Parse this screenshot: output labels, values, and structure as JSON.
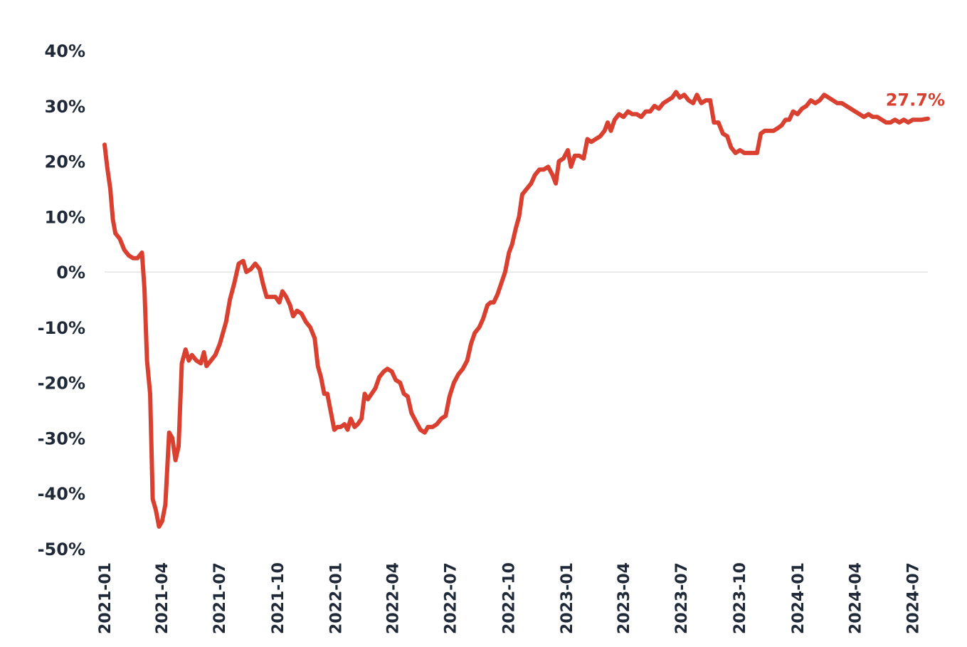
{
  "chart_data": {
    "type": "line",
    "title": "",
    "xlabel": "",
    "ylabel": "",
    "ylim": [
      -50,
      40
    ],
    "y_ticks": [
      40,
      30,
      20,
      10,
      0,
      -10,
      -20,
      -30,
      -40,
      -50
    ],
    "y_tick_labels": [
      "40%",
      "30%",
      "20%",
      "10%",
      "0%",
      "-10%",
      "-20%",
      "-30%",
      "-40%",
      "-50%"
    ],
    "x_tick_labels": [
      "2021-01",
      "2021-04",
      "2021-07",
      "2021-10",
      "2022-01",
      "2022-04",
      "2022-07",
      "2022-10",
      "2023-01",
      "2023-04",
      "2023-07",
      "2023-10",
      "2024-01",
      "2024-04",
      "2024-07"
    ],
    "x_range": [
      "2021-01-01",
      "2024-07-25"
    ],
    "grid": "zero line only",
    "legend": "none",
    "line_color": "#d94030",
    "zero_line_color": "#e3e3e3",
    "text_color": "#1f2937",
    "last_value_label": "27.7%",
    "series": [
      {
        "points": [
          [
            "2021-01-01",
            23
          ],
          [
            "2021-01-05",
            19
          ],
          [
            "2021-01-10",
            15
          ],
          [
            "2021-01-14",
            9.5
          ],
          [
            "2021-01-18",
            7
          ],
          [
            "2021-01-25",
            6
          ],
          [
            "2021-02-01",
            4
          ],
          [
            "2021-02-08",
            3
          ],
          [
            "2021-02-15",
            2.5
          ],
          [
            "2021-02-22",
            2.5
          ],
          [
            "2021-03-01",
            3.5
          ],
          [
            "2021-03-05",
            -3
          ],
          [
            "2021-03-09",
            -16
          ],
          [
            "2021-03-14",
            -22
          ],
          [
            "2021-03-18",
            -41
          ],
          [
            "2021-03-23",
            -43
          ],
          [
            "2021-03-28",
            -46
          ],
          [
            "2021-04-02",
            -45
          ],
          [
            "2021-04-07",
            -42
          ],
          [
            "2021-04-13",
            -29
          ],
          [
            "2021-04-18",
            -30
          ],
          [
            "2021-04-23",
            -34
          ],
          [
            "2021-04-28",
            -31.5
          ],
          [
            "2021-05-03",
            -16.5
          ],
          [
            "2021-05-09",
            -14
          ],
          [
            "2021-05-14",
            -16
          ],
          [
            "2021-05-19",
            -15
          ],
          [
            "2021-05-26",
            -16
          ],
          [
            "2021-06-02",
            -16.5
          ],
          [
            "2021-06-07",
            -14.5
          ],
          [
            "2021-06-11",
            -17
          ],
          [
            "2021-06-18",
            -16
          ],
          [
            "2021-06-25",
            -15
          ],
          [
            "2021-07-02",
            -13
          ],
          [
            "2021-07-07",
            -11
          ],
          [
            "2021-07-12",
            -9
          ],
          [
            "2021-07-18",
            -5
          ],
          [
            "2021-07-25",
            -2
          ],
          [
            "2021-08-01",
            1.5
          ],
          [
            "2021-08-08",
            2
          ],
          [
            "2021-08-13",
            0
          ],
          [
            "2021-08-20",
            0.5
          ],
          [
            "2021-08-27",
            1.5
          ],
          [
            "2021-09-03",
            0.5
          ],
          [
            "2021-09-08",
            -2
          ],
          [
            "2021-09-14",
            -4.5
          ],
          [
            "2021-09-21",
            -4.5
          ],
          [
            "2021-09-28",
            -4.5
          ],
          [
            "2021-10-04",
            -5.5
          ],
          [
            "2021-10-09",
            -3.5
          ],
          [
            "2021-10-15",
            -4.5
          ],
          [
            "2021-10-21",
            -6
          ],
          [
            "2021-10-26",
            -8
          ],
          [
            "2021-11-01",
            -7
          ],
          [
            "2021-11-08",
            -7.5
          ],
          [
            "2021-11-15",
            -9
          ],
          [
            "2021-11-22",
            -10
          ],
          [
            "2021-11-29",
            -12
          ],
          [
            "2021-12-04",
            -17
          ],
          [
            "2021-12-09",
            -19
          ],
          [
            "2021-12-14",
            -22
          ],
          [
            "2021-12-19",
            -22
          ],
          [
            "2021-12-24",
            -25
          ],
          [
            "2021-12-30",
            -28.5
          ],
          [
            "2022-01-04",
            -28
          ],
          [
            "2022-01-09",
            -28
          ],
          [
            "2022-01-15",
            -27.5
          ],
          [
            "2022-01-20",
            -28.5
          ],
          [
            "2022-01-25",
            -26.5
          ],
          [
            "2022-01-31",
            -28
          ],
          [
            "2022-02-05",
            -27.5
          ],
          [
            "2022-02-11",
            -26.5
          ],
          [
            "2022-02-16",
            -22
          ],
          [
            "2022-02-21",
            -23
          ],
          [
            "2022-02-27",
            -22
          ],
          [
            "2022-03-05",
            -21
          ],
          [
            "2022-03-11",
            -19
          ],
          [
            "2022-03-18",
            -18
          ],
          [
            "2022-03-24",
            -17.5
          ],
          [
            "2022-03-31",
            -18
          ],
          [
            "2022-04-06",
            -19.5
          ],
          [
            "2022-04-13",
            -20
          ],
          [
            "2022-04-19",
            -22
          ],
          [
            "2022-04-25",
            -22.5
          ],
          [
            "2022-05-01",
            -25.5
          ],
          [
            "2022-05-08",
            -27
          ],
          [
            "2022-05-15",
            -28.5
          ],
          [
            "2022-05-22",
            -29
          ],
          [
            "2022-05-27",
            -28
          ],
          [
            "2022-06-03",
            -28
          ],
          [
            "2022-06-10",
            -27.5
          ],
          [
            "2022-06-17",
            -26.5
          ],
          [
            "2022-06-24",
            -26
          ],
          [
            "2022-06-30",
            -22.5
          ],
          [
            "2022-07-07",
            -20
          ],
          [
            "2022-07-14",
            -18.5
          ],
          [
            "2022-07-21",
            -17.5
          ],
          [
            "2022-07-28",
            -16
          ],
          [
            "2022-08-03",
            -13
          ],
          [
            "2022-08-09",
            -11
          ],
          [
            "2022-08-16",
            -10
          ],
          [
            "2022-08-22",
            -8.5
          ],
          [
            "2022-08-29",
            -6
          ],
          [
            "2022-09-03",
            -5.5
          ],
          [
            "2022-09-08",
            -5.5
          ],
          [
            "2022-09-14",
            -4
          ],
          [
            "2022-09-20",
            -2
          ],
          [
            "2022-09-26",
            0
          ],
          [
            "2022-10-02",
            3.5
          ],
          [
            "2022-10-07",
            5
          ],
          [
            "2022-10-13",
            8
          ],
          [
            "2022-10-18",
            10
          ],
          [
            "2022-10-23",
            14
          ],
          [
            "2022-10-30",
            15
          ],
          [
            "2022-11-06",
            16
          ],
          [
            "2022-11-12",
            17.5
          ],
          [
            "2022-11-19",
            18.5
          ],
          [
            "2022-11-26",
            18.5
          ],
          [
            "2022-12-03",
            19
          ],
          [
            "2022-12-10",
            17.5
          ],
          [
            "2022-12-15",
            16
          ],
          [
            "2022-12-20",
            20
          ],
          [
            "2022-12-27",
            20.5
          ],
          [
            "2023-01-03",
            22
          ],
          [
            "2023-01-08",
            19
          ],
          [
            "2023-01-14",
            21
          ],
          [
            "2023-01-21",
            21
          ],
          [
            "2023-01-28",
            20.5
          ],
          [
            "2023-02-03",
            24
          ],
          [
            "2023-02-09",
            23.5
          ],
          [
            "2023-02-16",
            24
          ],
          [
            "2023-02-23",
            24.5
          ],
          [
            "2023-03-02",
            25.5
          ],
          [
            "2023-03-07",
            27
          ],
          [
            "2023-03-12",
            25.5
          ],
          [
            "2023-03-18",
            27.5
          ],
          [
            "2023-03-25",
            28.5
          ],
          [
            "2023-04-01",
            28
          ],
          [
            "2023-04-08",
            29
          ],
          [
            "2023-04-15",
            28.5
          ],
          [
            "2023-04-22",
            28.5
          ],
          [
            "2023-04-29",
            28
          ],
          [
            "2023-05-06",
            29
          ],
          [
            "2023-05-13",
            29
          ],
          [
            "2023-05-20",
            30
          ],
          [
            "2023-05-27",
            29.5
          ],
          [
            "2023-06-03",
            30.5
          ],
          [
            "2023-06-10",
            31
          ],
          [
            "2023-06-17",
            31.5
          ],
          [
            "2023-06-23",
            32.5
          ],
          [
            "2023-06-29",
            31.5
          ],
          [
            "2023-07-06",
            32
          ],
          [
            "2023-07-13",
            31
          ],
          [
            "2023-07-20",
            30.5
          ],
          [
            "2023-07-26",
            32
          ],
          [
            "2023-08-02",
            30.5
          ],
          [
            "2023-08-09",
            31
          ],
          [
            "2023-08-16",
            31
          ],
          [
            "2023-08-22",
            27
          ],
          [
            "2023-08-29",
            27
          ],
          [
            "2023-09-05",
            25
          ],
          [
            "2023-09-12",
            24.5
          ],
          [
            "2023-09-18",
            22.5
          ],
          [
            "2023-09-25",
            21.5
          ],
          [
            "2023-10-02",
            22
          ],
          [
            "2023-10-09",
            21.5
          ],
          [
            "2023-10-16",
            21.5
          ],
          [
            "2023-10-22",
            21.5
          ],
          [
            "2023-10-29",
            21.5
          ],
          [
            "2023-11-04",
            25
          ],
          [
            "2023-11-10",
            25.5
          ],
          [
            "2023-11-17",
            25.5
          ],
          [
            "2023-11-24",
            25.5
          ],
          [
            "2023-12-01",
            26
          ],
          [
            "2023-12-07",
            26.5
          ],
          [
            "2023-12-13",
            27.5
          ],
          [
            "2023-12-19",
            27.5
          ],
          [
            "2023-12-25",
            29
          ],
          [
            "2024-01-01",
            28.5
          ],
          [
            "2024-01-08",
            29.5
          ],
          [
            "2024-01-15",
            30
          ],
          [
            "2024-01-22",
            31
          ],
          [
            "2024-01-29",
            30.5
          ],
          [
            "2024-02-05",
            31
          ],
          [
            "2024-02-12",
            32
          ],
          [
            "2024-02-19",
            31.5
          ],
          [
            "2024-02-26",
            31
          ],
          [
            "2024-03-04",
            30.5
          ],
          [
            "2024-03-11",
            30.5
          ],
          [
            "2024-03-18",
            30
          ],
          [
            "2024-03-25",
            29.5
          ],
          [
            "2024-04-01",
            29
          ],
          [
            "2024-04-08",
            28.5
          ],
          [
            "2024-04-15",
            28
          ],
          [
            "2024-04-22",
            28.5
          ],
          [
            "2024-04-29",
            28
          ],
          [
            "2024-05-06",
            28
          ],
          [
            "2024-05-13",
            27.5
          ],
          [
            "2024-05-20",
            27
          ],
          [
            "2024-05-27",
            27
          ],
          [
            "2024-06-03",
            27.5
          ],
          [
            "2024-06-10",
            27
          ],
          [
            "2024-06-17",
            27.5
          ],
          [
            "2024-06-24",
            27
          ],
          [
            "2024-07-01",
            27.5
          ],
          [
            "2024-07-08",
            27.5
          ],
          [
            "2024-07-15",
            27.5
          ],
          [
            "2024-07-25",
            27.7
          ]
        ]
      }
    ]
  }
}
